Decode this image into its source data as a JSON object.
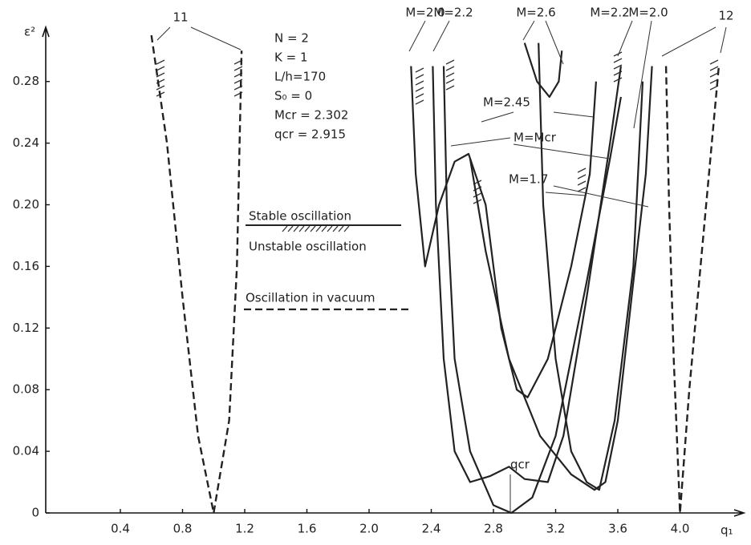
{
  "chart_data": {
    "type": "line",
    "x_label": "q₁",
    "y_label": "ε²",
    "xlim": [
      -0.08,
      4.4
    ],
    "ylim": [
      0,
      0.31
    ],
    "xticks": [
      0.4,
      0.8,
      1.2,
      1.6,
      {
        "value": 2,
        "label": "2.0"
      },
      2.4,
      2.8,
      3.2,
      3.6,
      {
        "value": 4,
        "label": "4.0"
      }
    ],
    "yticks": [
      0,
      0.04,
      0.08,
      0.12,
      0.16,
      {
        "value": 0.2,
        "label": "0.20"
      },
      0.24,
      0.28
    ],
    "color": "#222",
    "series": [
      {
        "name": "11",
        "style": "dashed",
        "x": [
          0.6,
          0.7,
          0.8,
          0.9,
          1.0,
          1.1,
          1.15,
          1.18
        ],
        "values": [
          0.31,
          0.24,
          0.14,
          0.05,
          0,
          0.06,
          0.16,
          0.3
        ]
      },
      {
        "name": "12",
        "style": "dashed",
        "x": [
          3.91,
          3.93,
          3.96,
          4.0,
          4.06,
          4.15,
          4.25
        ],
        "values": [
          0.29,
          0.2,
          0.1,
          0,
          0.08,
          0.18,
          0.29
        ]
      },
      {
        "name": "M=2.0",
        "style": "solid",
        "x": [
          2.27,
          2.3,
          2.36,
          2.45,
          2.55,
          2.64,
          2.75,
          2.85,
          2.95,
          3.02,
          3.15,
          3.3,
          3.42,
          3.46
        ],
        "values": [
          0.29,
          0.22,
          0.16,
          0.2,
          0.228,
          0.233,
          0.2,
          0.12,
          0.08,
          0.075,
          0.1,
          0.16,
          0.22,
          0.28
        ]
      },
      {
        "name": "M=2.2",
        "style": "solid",
        "x": [
          2.41,
          2.43,
          2.48,
          2.55,
          2.65,
          2.78,
          2.9,
          3.0,
          3.15,
          3.25,
          3.4,
          3.55,
          3.62
        ],
        "values": [
          0.29,
          0.2,
          0.1,
          0.04,
          0.02,
          0.024,
          0.03,
          0.022,
          0.02,
          0.05,
          0.14,
          0.24,
          0.29
        ]
      },
      {
        "name": "M=Mcr",
        "style": "solid",
        "x": [
          2.48,
          2.5,
          2.55,
          2.65,
          2.8,
          2.915,
          3.05,
          3.2,
          3.4,
          3.55,
          3.62
        ],
        "values": [
          0.29,
          0.2,
          0.1,
          0.04,
          0.005,
          0,
          0.01,
          0.05,
          0.15,
          0.23,
          0.27
        ]
      },
      {
        "name": "M=1.7",
        "style": "solid",
        "x": [
          2.65,
          2.75,
          2.9,
          3.1,
          3.3,
          3.45,
          3.52,
          3.6,
          3.7,
          3.78,
          3.82
        ],
        "values": [
          0.23,
          0.17,
          0.1,
          0.05,
          0.025,
          0.015,
          0.02,
          0.06,
          0.15,
          0.22,
          0.29
        ]
      },
      {
        "name": "M=2.6",
        "style": "solid",
        "x": [
          3.0,
          3.08,
          3.16,
          3.22,
          3.24
        ],
        "values": [
          0.305,
          0.28,
          0.27,
          0.28,
          0.3
        ]
      },
      {
        "name": "M=2.45",
        "style": "solid",
        "x": [
          3.09,
          3.12,
          3.2,
          3.3,
          3.4,
          3.48,
          3.58,
          3.7,
          3.76
        ],
        "values": [
          0.305,
          0.2,
          0.1,
          0.04,
          0.02,
          0.015,
          0.06,
          0.16,
          0.28
        ]
      }
    ],
    "annotations": [
      "M=2.2",
      "M=2.0",
      "qcr"
    ],
    "parameters": [
      "N = 2",
      "K = 1",
      "L/h=170",
      "S₀ = 0",
      "Mcr = 2.302",
      "qcr = 2.915"
    ],
    "legend_labels": [
      "Stable oscillation",
      "Unstable oscillation",
      "Oscillation in vacuum"
    ]
  }
}
